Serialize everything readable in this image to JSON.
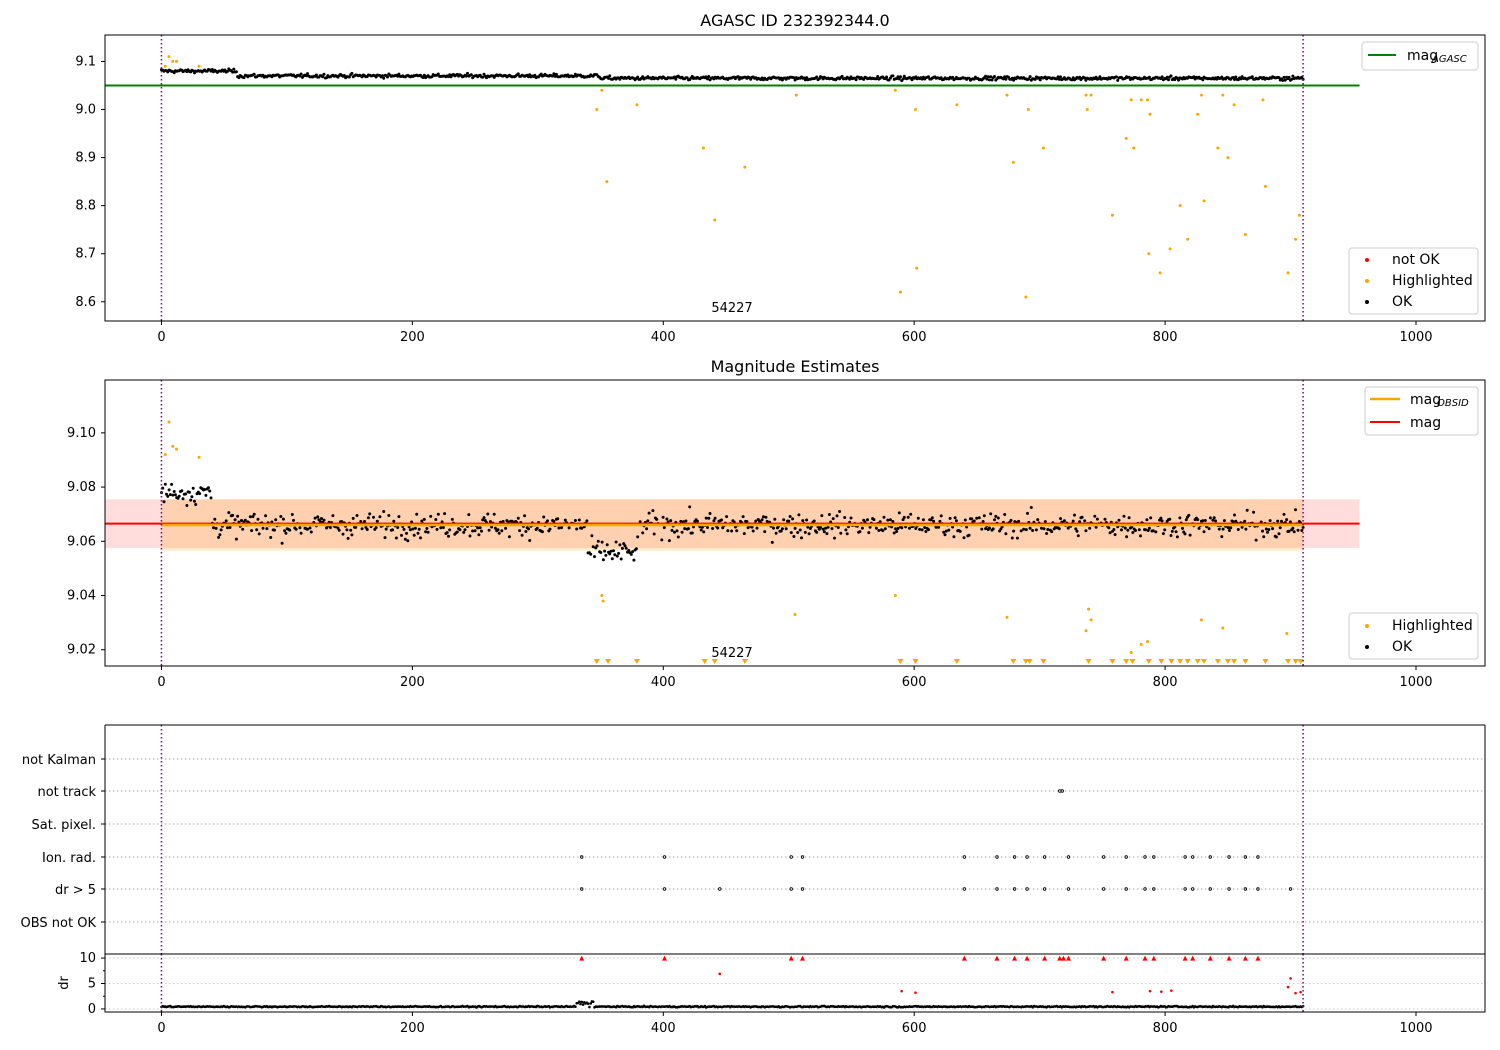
{
  "chart_data": [
    {
      "type": "scatter",
      "title": "AGASC ID 232392344.0",
      "annotation": "54227",
      "xlim": [
        -45,
        1055
      ],
      "ylim": [
        8.56,
        9.155
      ],
      "xticks": [
        0,
        200,
        400,
        600,
        800,
        1000
      ],
      "yticks": [
        8.6,
        8.7,
        8.8,
        8.9,
        9.0,
        9.1
      ],
      "ytick_labels": [
        "8.6",
        "8.7",
        "8.8",
        "8.9",
        "9.0",
        "9.1"
      ],
      "vlines": [
        0,
        910
      ],
      "hline": {
        "label": "mag",
        "label_sub": "AGASC",
        "value": 9.05,
        "xrange": [
          -45,
          955
        ],
        "color": "#008000"
      },
      "series": [
        {
          "name": "not OK",
          "color": "#ff0000",
          "points": []
        },
        {
          "name": "Highlighted",
          "color": "#ffa500",
          "points": [
            [
              3,
              9.09
            ],
            [
              6,
              9.11
            ],
            [
              9,
              9.1
            ],
            [
              12,
              9.1
            ],
            [
              30,
              9.09
            ],
            [
              347,
              9.0
            ],
            [
              351,
              9.04
            ],
            [
              355,
              8.85
            ],
            [
              379,
              9.01
            ],
            [
              432,
              8.92
            ],
            [
              441,
              8.77
            ],
            [
              465,
              8.88
            ],
            [
              506,
              9.03
            ],
            [
              585,
              9.04
            ],
            [
              589,
              8.62
            ],
            [
              601,
              9.0
            ],
            [
              602,
              8.67
            ],
            [
              634,
              9.01
            ],
            [
              674,
              9.03
            ],
            [
              679,
              8.89
            ],
            [
              689,
              8.61
            ],
            [
              691,
              9.0
            ],
            [
              703,
              8.92
            ],
            [
              737,
              9.03
            ],
            [
              738,
              9.0
            ],
            [
              741,
              9.03
            ],
            [
              758,
              8.78
            ],
            [
              769,
              8.94
            ],
            [
              773,
              9.02
            ],
            [
              775,
              8.92
            ],
            [
              781,
              9.02
            ],
            [
              786,
              9.02
            ],
            [
              787,
              8.7
            ],
            [
              788,
              8.99
            ],
            [
              796,
              8.66
            ],
            [
              804,
              8.71
            ],
            [
              812,
              8.8
            ],
            [
              818,
              8.73
            ],
            [
              826,
              8.99
            ],
            [
              829,
              9.03
            ],
            [
              831,
              8.81
            ],
            [
              842,
              8.92
            ],
            [
              846,
              9.03
            ],
            [
              850,
              8.9
            ],
            [
              855,
              9.01
            ],
            [
              864,
              8.74
            ],
            [
              878,
              9.02
            ],
            [
              880,
              8.84
            ],
            [
              898,
              8.66
            ],
            [
              904,
              8.73
            ],
            [
              907,
              8.78
            ]
          ]
        },
        {
          "name": "OK",
          "color": "#000000",
          "points": "dense: ~900 observations clustered near mag 9.05–9.09 across x 0–910"
        }
      ],
      "legend": [
        {
          "label": "mag",
          "label_sub": "AGASC",
          "location": "top-right"
        },
        {
          "label": "not OK",
          "location": "bottom-right"
        },
        {
          "label": "Highlighted",
          "location": "bottom-right"
        },
        {
          "label": "OK",
          "location": "bottom-right"
        }
      ]
    },
    {
      "type": "scatter",
      "title": "Magnitude Estimates",
      "annotation": "54227",
      "xlim": [
        -45,
        1055
      ],
      "ylim": [
        9.014,
        9.1195
      ],
      "xticks": [
        0,
        200,
        400,
        600,
        800,
        1000
      ],
      "yticks": [
        9.02,
        9.04,
        9.06,
        9.08,
        9.1
      ],
      "ytick_labels": [
        "9.02",
        "9.04",
        "9.06",
        "9.08",
        "9.10"
      ],
      "vlines": [
        0,
        910
      ],
      "mag": {
        "label": "mag",
        "value": 9.0665,
        "band": [
          9.0575,
          9.0755
        ],
        "xrange": [
          -45,
          955
        ],
        "color": "#ff0000"
      },
      "mag_obsid": {
        "label": "mag",
        "label_sub": "OBSID",
        "value": 9.066,
        "band": [
          9.0565,
          9.0755
        ],
        "xrange": [
          0,
          910
        ],
        "color": "#ffa500"
      },
      "series": [
        {
          "name": "Highlighted",
          "color": "#ffa500",
          "points": [
            [
              3,
              9.092
            ],
            [
              6,
              9.104
            ],
            [
              9,
              9.095
            ],
            [
              12,
              9.094
            ],
            [
              30,
              9.091
            ],
            [
              351,
              9.04
            ],
            [
              352,
              9.038
            ],
            [
              585,
              9.04
            ],
            [
              505,
              9.033
            ],
            [
              674,
              9.032
            ],
            [
              737,
              9.027
            ],
            [
              739,
              9.035
            ],
            [
              741,
              9.031
            ],
            [
              773,
              9.019
            ],
            [
              781,
              9.022
            ],
            [
              786,
              9.023
            ],
            [
              829,
              9.031
            ],
            [
              846,
              9.028
            ],
            [
              897,
              9.026
            ]
          ]
        },
        {
          "name": "OK",
          "color": "#000000",
          "points": "dense: ~900 observations scattered 9.04–9.09 across x 0–910"
        }
      ],
      "below_axis_markers_x": [
        347,
        356,
        379,
        433,
        441,
        465,
        589,
        601,
        634,
        679,
        689,
        692,
        703,
        739,
        758,
        769,
        774,
        787,
        797,
        805,
        812,
        818,
        826,
        831,
        842,
        850,
        855,
        864,
        880,
        898,
        904,
        908
      ],
      "legend": [
        {
          "label": "mag",
          "label_sub": "OBSID",
          "location": "top-right"
        },
        {
          "label": "mag",
          "location": "top-right"
        },
        {
          "label": "Highlighted",
          "location": "bottom-right"
        },
        {
          "label": "OK",
          "location": "bottom-right"
        }
      ]
    },
    {
      "type": "scatter",
      "title": "",
      "xlim": [
        -45,
        1055
      ],
      "xticks": [
        0,
        200,
        400,
        600,
        800,
        1000
      ],
      "vlines": [
        0,
        910
      ],
      "flags": [
        "not Kalman",
        "not track",
        "Sat. pixel.",
        "Ion. rad.",
        "dr > 5",
        "OBS not OK"
      ],
      "flag_points": {
        "not track": [
          716,
          718
        ],
        "Ion. rad.": [
          335,
          401,
          502,
          511,
          640,
          666,
          680,
          690,
          704,
          723,
          751,
          769,
          784,
          791,
          816,
          822,
          836,
          851,
          864,
          874
        ],
        "dr > 5": [
          335,
          401,
          445,
          502,
          511,
          640,
          666,
          680,
          690,
          704,
          723,
          751,
          769,
          784,
          791,
          816,
          822,
          836,
          851,
          864,
          874,
          900
        ]
      }
    },
    {
      "type": "scatter",
      "title": "",
      "ylabel": "dr",
      "xlim": [
        -45,
        1055
      ],
      "ylim": [
        -0.6,
        10.8
      ],
      "xticks": [
        0,
        200,
        400,
        600,
        800,
        1000
      ],
      "yticks": [
        0,
        5,
        10
      ],
      "ytick_labels": [
        "0",
        "5",
        "10"
      ],
      "vlines": [
        0,
        910
      ],
      "series": [
        {
          "name": "dr > 5",
          "color": "#ff0000",
          "marker": "triangle",
          "points": [
            [
              335,
              10
            ],
            [
              401,
              10
            ],
            [
              502,
              10
            ],
            [
              511,
              10
            ],
            [
              640,
              10
            ],
            [
              666,
              10
            ],
            [
              680,
              10
            ],
            [
              690,
              10
            ],
            [
              704,
              10
            ],
            [
              716,
              10
            ],
            [
              719,
              10
            ],
            [
              723,
              10
            ],
            [
              751,
              10
            ],
            [
              769,
              10
            ],
            [
              784,
              10
            ],
            [
              791,
              10
            ],
            [
              816,
              10
            ],
            [
              822,
              10
            ],
            [
              836,
              10
            ],
            [
              851,
              10
            ],
            [
              864,
              10
            ],
            [
              874,
              10
            ]
          ]
        },
        {
          "name": "dr",
          "color": "#ff0000",
          "points": [
            [
              445,
              6.9
            ],
            [
              590,
              3.5
            ],
            [
              601,
              3.2
            ],
            [
              758,
              3.3
            ],
            [
              788,
              3.5
            ],
            [
              797,
              3.4
            ],
            [
              805,
              3.6
            ],
            [
              900,
              6.0
            ],
            [
              898,
              4.3
            ],
            [
              904,
              3.1
            ],
            [
              908,
              3.3
            ]
          ]
        },
        {
          "name": "",
          "color": "#000000",
          "points": "dense: ~900 observations near dr 0–1 across x 0–910"
        }
      ]
    }
  ],
  "colors": {
    "ok": "#000000",
    "highlighted": "#ffa500",
    "not_ok": "#ff0000",
    "agasc_line": "#008000",
    "vline": "#800080",
    "band_mag": "#ff000022",
    "band_obsid": "#ffa50033"
  }
}
